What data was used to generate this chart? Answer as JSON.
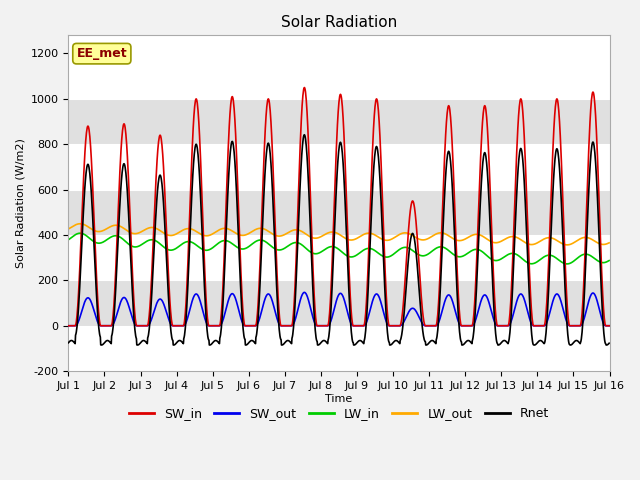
{
  "title": "Solar Radiation",
  "ylabel": "Solar Radiation (W/m2)",
  "xlabel": "Time",
  "ylim": [
    -200,
    1280
  ],
  "xlim": [
    0,
    15
  ],
  "annotation": "EE_met",
  "series": {
    "SW_in": {
      "color": "#dd0000",
      "lw": 1.2
    },
    "SW_out": {
      "color": "#0000ee",
      "lw": 1.2
    },
    "LW_in": {
      "color": "#00cc00",
      "lw": 1.2
    },
    "LW_out": {
      "color": "#ffaa00",
      "lw": 1.2
    },
    "Rnet": {
      "color": "#000000",
      "lw": 1.2
    }
  },
  "xtick_labels": [
    "Jul 1",
    "Jul 2",
    "Jul 3",
    "Jul 4",
    "Jul 5",
    "Jul 6",
    "Jul 7",
    "Jul 8",
    "Jul 9",
    "Jul 10",
    "Jul 11",
    "Jul 12",
    "Jul 13",
    "Jul 14",
    "Jul 15",
    "Jul 16"
  ],
  "ytick_labels": [
    "-200",
    "0",
    "200",
    "400",
    "600",
    "800",
    "1000",
    "1200"
  ],
  "yticks": [
    -200,
    0,
    200,
    400,
    600,
    800,
    1000,
    1200
  ],
  "fig_bg": "#f2f2f2",
  "plot_bg": "#ffffff",
  "band_color_dark": "#e0e0e0",
  "band_color_light": "#f0f0f0",
  "n_days": 15,
  "dt_hours": 0.25,
  "day_peaks_SW": [
    880,
    890,
    840,
    1000,
    1010,
    1000,
    1050,
    1020,
    1000,
    550,
    970,
    970,
    1000,
    1000,
    1030
  ],
  "sunrise_hour": 4.5,
  "sunset_hour": 21.5,
  "lw_in_base": 380,
  "lw_out_base": 430,
  "lw_amplitude": 25,
  "night_rnet": -75
}
